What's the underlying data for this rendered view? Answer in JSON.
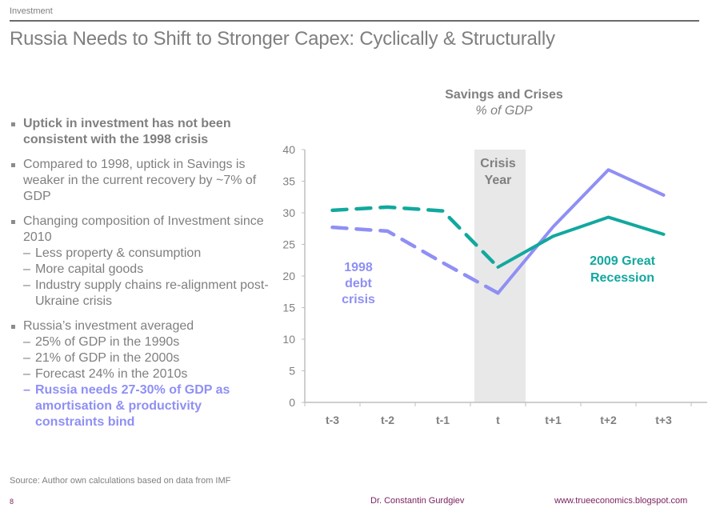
{
  "header": {
    "section": "Investment",
    "title": "Russia Needs to Shift to Stronger Capex: Cyclically & Structurally"
  },
  "bullets": [
    {
      "text": "Uptick in investment has not been consistent with the 1998 crisis",
      "bold": true,
      "subs": []
    },
    {
      "text": "Compared to 1998, uptick in Savings is weaker in the current recovery by ~7% of GDP",
      "bold": false,
      "subs": []
    },
    {
      "text": "Changing composition of Investment since 2010",
      "bold": false,
      "subs": [
        {
          "text": "Less property & consumption",
          "highlight": false
        },
        {
          "text": "More capital goods",
          "highlight": false
        },
        {
          "text": "Industry supply chains re-alignment post-Ukraine crisis",
          "highlight": false
        }
      ]
    },
    {
      "text": "Russia’s investment averaged",
      "bold": false,
      "subs": [
        {
          "text": "25% of GDP in the 1990s",
          "highlight": false
        },
        {
          "text": "21% of GDP in the 2000s",
          "highlight": false
        },
        {
          "text": "Forecast 24% in the 2010s",
          "highlight": false
        },
        {
          "text": "Russia needs 27-30% of GDP as amortisation & productivity constraints bind",
          "highlight": true
        }
      ]
    }
  ],
  "dash_glyph": "–",
  "chart_data": {
    "type": "line",
    "title": "Savings and Crises",
    "subtitle": "% of GDP",
    "xlabel": "",
    "ylabel": "",
    "categories": [
      "t-3",
      "t-2",
      "t-1",
      "t",
      "t+1",
      "t+2",
      "t+3"
    ],
    "ylim": [
      0,
      40
    ],
    "yticks": [
      0,
      5,
      10,
      15,
      20,
      25,
      30,
      35,
      40
    ],
    "grid": false,
    "highlight_band": {
      "category": "t",
      "label_lines": [
        "Crisis",
        "Year"
      ],
      "color": "#e8e8e8"
    },
    "series": [
      {
        "name": "1998 debt crisis",
        "label_lines": [
          "1998",
          "debt",
          "crisis"
        ],
        "color": "#8f8ff5",
        "values": [
          27.7,
          27.1,
          22.1,
          17.3,
          27.8,
          36.8,
          32.8
        ],
        "dashed_until_index": 3
      },
      {
        "name": "2009 Great Recession",
        "label_lines": [
          "2009 Great",
          "Recession"
        ],
        "color": "#12a89e",
        "values": [
          30.4,
          30.9,
          30.3,
          21.4,
          26.3,
          29.3,
          26.6
        ],
        "dashed_until_index": 3
      }
    ],
    "legend": "inline annotations"
  },
  "footer": {
    "source": "Source: Author own calculations based on data from IMF",
    "page_number": "8",
    "author": "Dr. Constantin Gurdgiev",
    "website": "www.trueeconomics.blogspot.com"
  }
}
